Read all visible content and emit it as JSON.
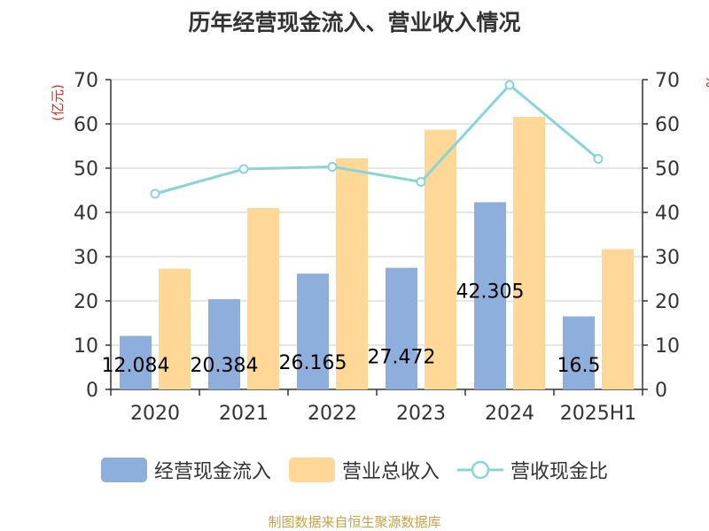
{
  "chart_data": {
    "type": "bar",
    "title": "历年经营现金流入、营业收入情况",
    "categories": [
      "2020",
      "2021",
      "2022",
      "2023",
      "2024",
      "2025H1"
    ],
    "ylabel_left": "(亿元)",
    "ylabel_right": "%",
    "ylim_left": [
      0,
      70
    ],
    "ylim_right": [
      0,
      70
    ],
    "y_ticks_left": [
      "0",
      "10",
      "20",
      "30",
      "40",
      "50",
      "60",
      "70"
    ],
    "y_ticks_right": [
      "0",
      "10",
      "20",
      "30",
      "40",
      "50",
      "60",
      "70"
    ],
    "grid": true,
    "legend_position": "bottom",
    "series": [
      {
        "name": "经营现金流入",
        "type": "bar",
        "color": "#8eaedc",
        "values": [
          12.084,
          20.384,
          26.165,
          27.472,
          42.305,
          16.5
        ],
        "data_labels": [
          "12.084",
          "20.384",
          "26.165",
          "27.472",
          "42.305",
          "16.5"
        ]
      },
      {
        "name": "营业总收入",
        "type": "bar",
        "color": "#ffd796",
        "values": [
          27.3,
          41.0,
          52.2,
          58.7,
          61.6,
          31.7
        ]
      },
      {
        "name": "营收现金比",
        "type": "line",
        "axis": "right",
        "color": "#88d4d8",
        "values": [
          44.2,
          49.8,
          50.3,
          46.9,
          68.8,
          52.1
        ]
      }
    ]
  },
  "source_text": "制图数据来自恒生聚源数据库"
}
